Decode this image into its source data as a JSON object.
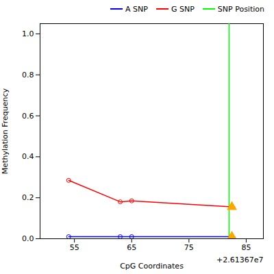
{
  "chart_data": {
    "type": "line",
    "xlabel": "CpG Coordinates",
    "ylabel": "Methylation Frequency",
    "series": [
      {
        "name": "A SNP",
        "type": "line",
        "color": "blue",
        "x": [
          26136754,
          26136763,
          26136765,
          26136783
        ],
        "values": [
          0.01,
          0.01,
          0.01,
          0.01
        ]
      },
      {
        "name": "G SNP",
        "type": "line",
        "color": "red",
        "x": [
          26136754,
          26136763,
          26136765,
          26136783
        ],
        "values": [
          0.285,
          0.18,
          0.185,
          0.155
        ]
      },
      {
        "name": "SNP Position",
        "type": "vline",
        "color": "lime",
        "x": [
          26136782
        ]
      },
      {
        "type": "scatter",
        "marker": "circle",
        "color": "blue",
        "x": [
          26136754,
          26136763,
          26136765
        ],
        "values": [
          0.01,
          0.01,
          0.01
        ]
      },
      {
        "type": "scatter",
        "marker": "circle",
        "color": "red",
        "x": [
          26136754,
          26136763,
          26136765
        ],
        "values": [
          0.285,
          0.18,
          0.185
        ]
      },
      {
        "type": "scatter",
        "marker": "triangle",
        "color": "#FFA500",
        "x": [
          26136782.5,
          26136782.5
        ],
        "values": [
          0.01,
          0.155
        ]
      }
    ],
    "xlim": [
      26136749,
      26136788
    ],
    "ylim": [
      0.0,
      1.05
    ],
    "xticks": [
      {
        "value": 26136755,
        "label": "55"
      },
      {
        "value": 26136765,
        "label": "65"
      },
      {
        "value": 26136775,
        "label": "75"
      },
      {
        "value": 26136785,
        "label": "85"
      }
    ],
    "yticks": [
      {
        "value": 0.0,
        "label": "0.0"
      },
      0.2,
      0.4,
      0.6,
      0.8,
      {
        "value": 1.0,
        "label": "1.0"
      }
    ],
    "annotations": [
      {
        "text": "+2.61367e7"
      }
    ],
    "grid": false,
    "legend": "upper right"
  }
}
